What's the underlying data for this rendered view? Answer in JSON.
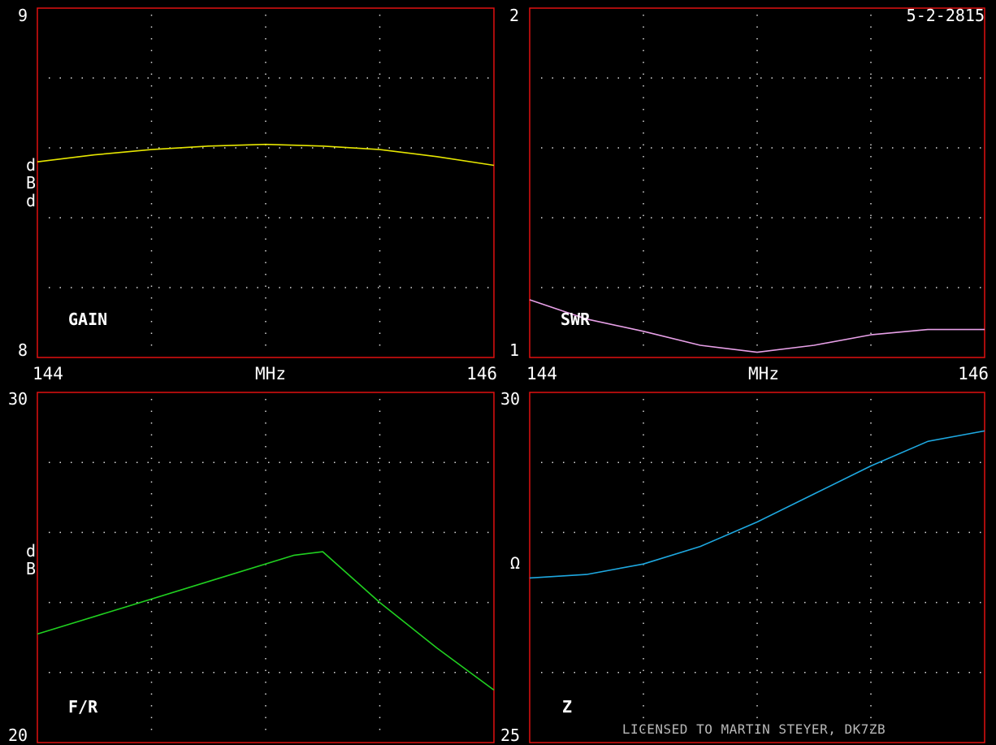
{
  "header": {
    "date": "5-2-2815"
  },
  "footer": {
    "license": "LICENSED TO MARTIN STEYER, DK7ZB"
  },
  "colors": {
    "background": "#000000",
    "frame": "#e01010",
    "grid": "#d8d8d8",
    "text": "#ffffff"
  },
  "chart_data": [
    {
      "id": "gain",
      "type": "line",
      "name_label": "GAIN",
      "unit_label": "dBd",
      "ylim": [
        8,
        9
      ],
      "y_tick_labels": [
        "9",
        "8"
      ],
      "xlim": [
        144,
        146
      ],
      "x_tick_labels": [
        "144",
        "MHz",
        "146"
      ],
      "grid": true,
      "color": "#e6e600",
      "series": [
        {
          "x": [
            144.0,
            144.25,
            144.5,
            144.75,
            145.0,
            145.25,
            145.5,
            145.75,
            146.0
          ],
          "y": [
            8.56,
            8.58,
            8.595,
            8.605,
            8.61,
            8.605,
            8.595,
            8.575,
            8.55
          ]
        }
      ]
    },
    {
      "id": "swr",
      "type": "line",
      "name_label": "SWR",
      "unit_label": "",
      "ylim": [
        1,
        2
      ],
      "y_tick_labels": [
        "2",
        "1"
      ],
      "xlim": [
        144,
        146
      ],
      "x_tick_labels": [
        "144",
        "MHz",
        "146"
      ],
      "grid": true,
      "color": "#e8a0e8",
      "series": [
        {
          "x": [
            144.0,
            144.25,
            144.5,
            144.75,
            145.0,
            145.25,
            145.5,
            145.75,
            146.0
          ],
          "y": [
            1.165,
            1.11,
            1.075,
            1.035,
            1.015,
            1.035,
            1.065,
            1.08,
            1.08
          ]
        }
      ]
    },
    {
      "id": "fr",
      "type": "line",
      "name_label": "F/R",
      "unit_label": "dB",
      "ylim": [
        20,
        30
      ],
      "y_tick_labels": [
        "30",
        "20"
      ],
      "xlim": [
        144,
        146
      ],
      "x_tick_labels": [],
      "grid": true,
      "color": "#20d020",
      "series": [
        {
          "x": [
            144.0,
            144.375,
            144.75,
            145.125,
            145.25,
            145.5,
            145.75,
            146.0
          ],
          "y": [
            23.1,
            23.85,
            24.6,
            25.35,
            25.45,
            24.0,
            22.7,
            21.5
          ]
        }
      ]
    },
    {
      "id": "z",
      "type": "line",
      "name_label": "Z",
      "unit_label": "Ω",
      "ylim": [
        25,
        30
      ],
      "y_tick_labels": [
        "30",
        "25"
      ],
      "xlim": [
        144,
        146
      ],
      "x_tick_labels": [],
      "grid": true,
      "color": "#1ea8e0",
      "series": [
        {
          "x": [
            144.0,
            144.25,
            144.5,
            144.75,
            145.0,
            145.25,
            145.5,
            145.75,
            146.0
          ],
          "y": [
            27.35,
            27.4,
            27.55,
            27.8,
            28.15,
            28.55,
            28.95,
            29.3,
            29.45
          ]
        }
      ]
    }
  ]
}
